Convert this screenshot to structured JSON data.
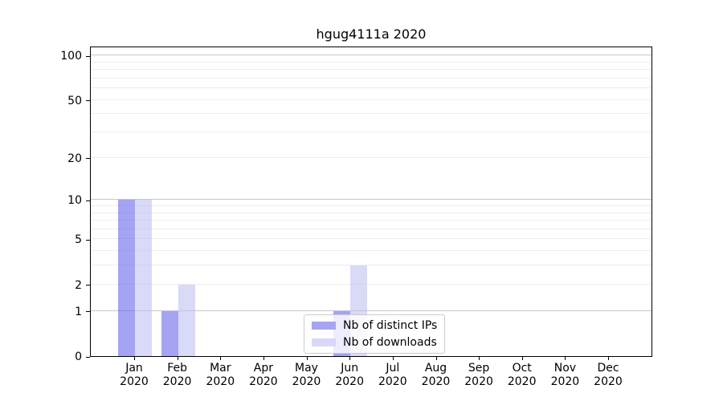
{
  "chart_data": {
    "type": "bar",
    "title": "hgug4111a 2020",
    "categories": [
      "Jan",
      "Feb",
      "Mar",
      "Apr",
      "May",
      "Jun",
      "Jul",
      "Aug",
      "Sep",
      "Oct",
      "Nov",
      "Dec"
    ],
    "category_year": "2020",
    "series": [
      {
        "name": "Nb of distinct IPs",
        "color": "#a5a5f3",
        "fill": "rgba(108,108,235,0.62)",
        "values": [
          10,
          1,
          0,
          0,
          0,
          1,
          0,
          0,
          0,
          0,
          0,
          0
        ]
      },
      {
        "name": "Nb of downloads",
        "color": "#d8d8f8",
        "fill": "rgba(193,193,244,0.62)",
        "values": [
          10,
          2,
          0,
          0,
          0,
          3,
          0,
          0,
          0,
          0,
          0,
          0
        ]
      }
    ],
    "xlabel": "",
    "ylabel": "",
    "yscale": "log1p",
    "yticks": [
      0,
      1,
      2,
      5,
      10,
      20,
      50,
      100
    ],
    "ylim": [
      0,
      116
    ],
    "major_gridlines": [
      1,
      10,
      100
    ],
    "minor_gridlines": [
      2,
      3,
      4,
      5,
      6,
      7,
      8,
      9,
      20,
      30,
      40,
      50,
      60,
      70,
      80,
      90
    ],
    "grid": true,
    "legend_position": "lower center"
  }
}
